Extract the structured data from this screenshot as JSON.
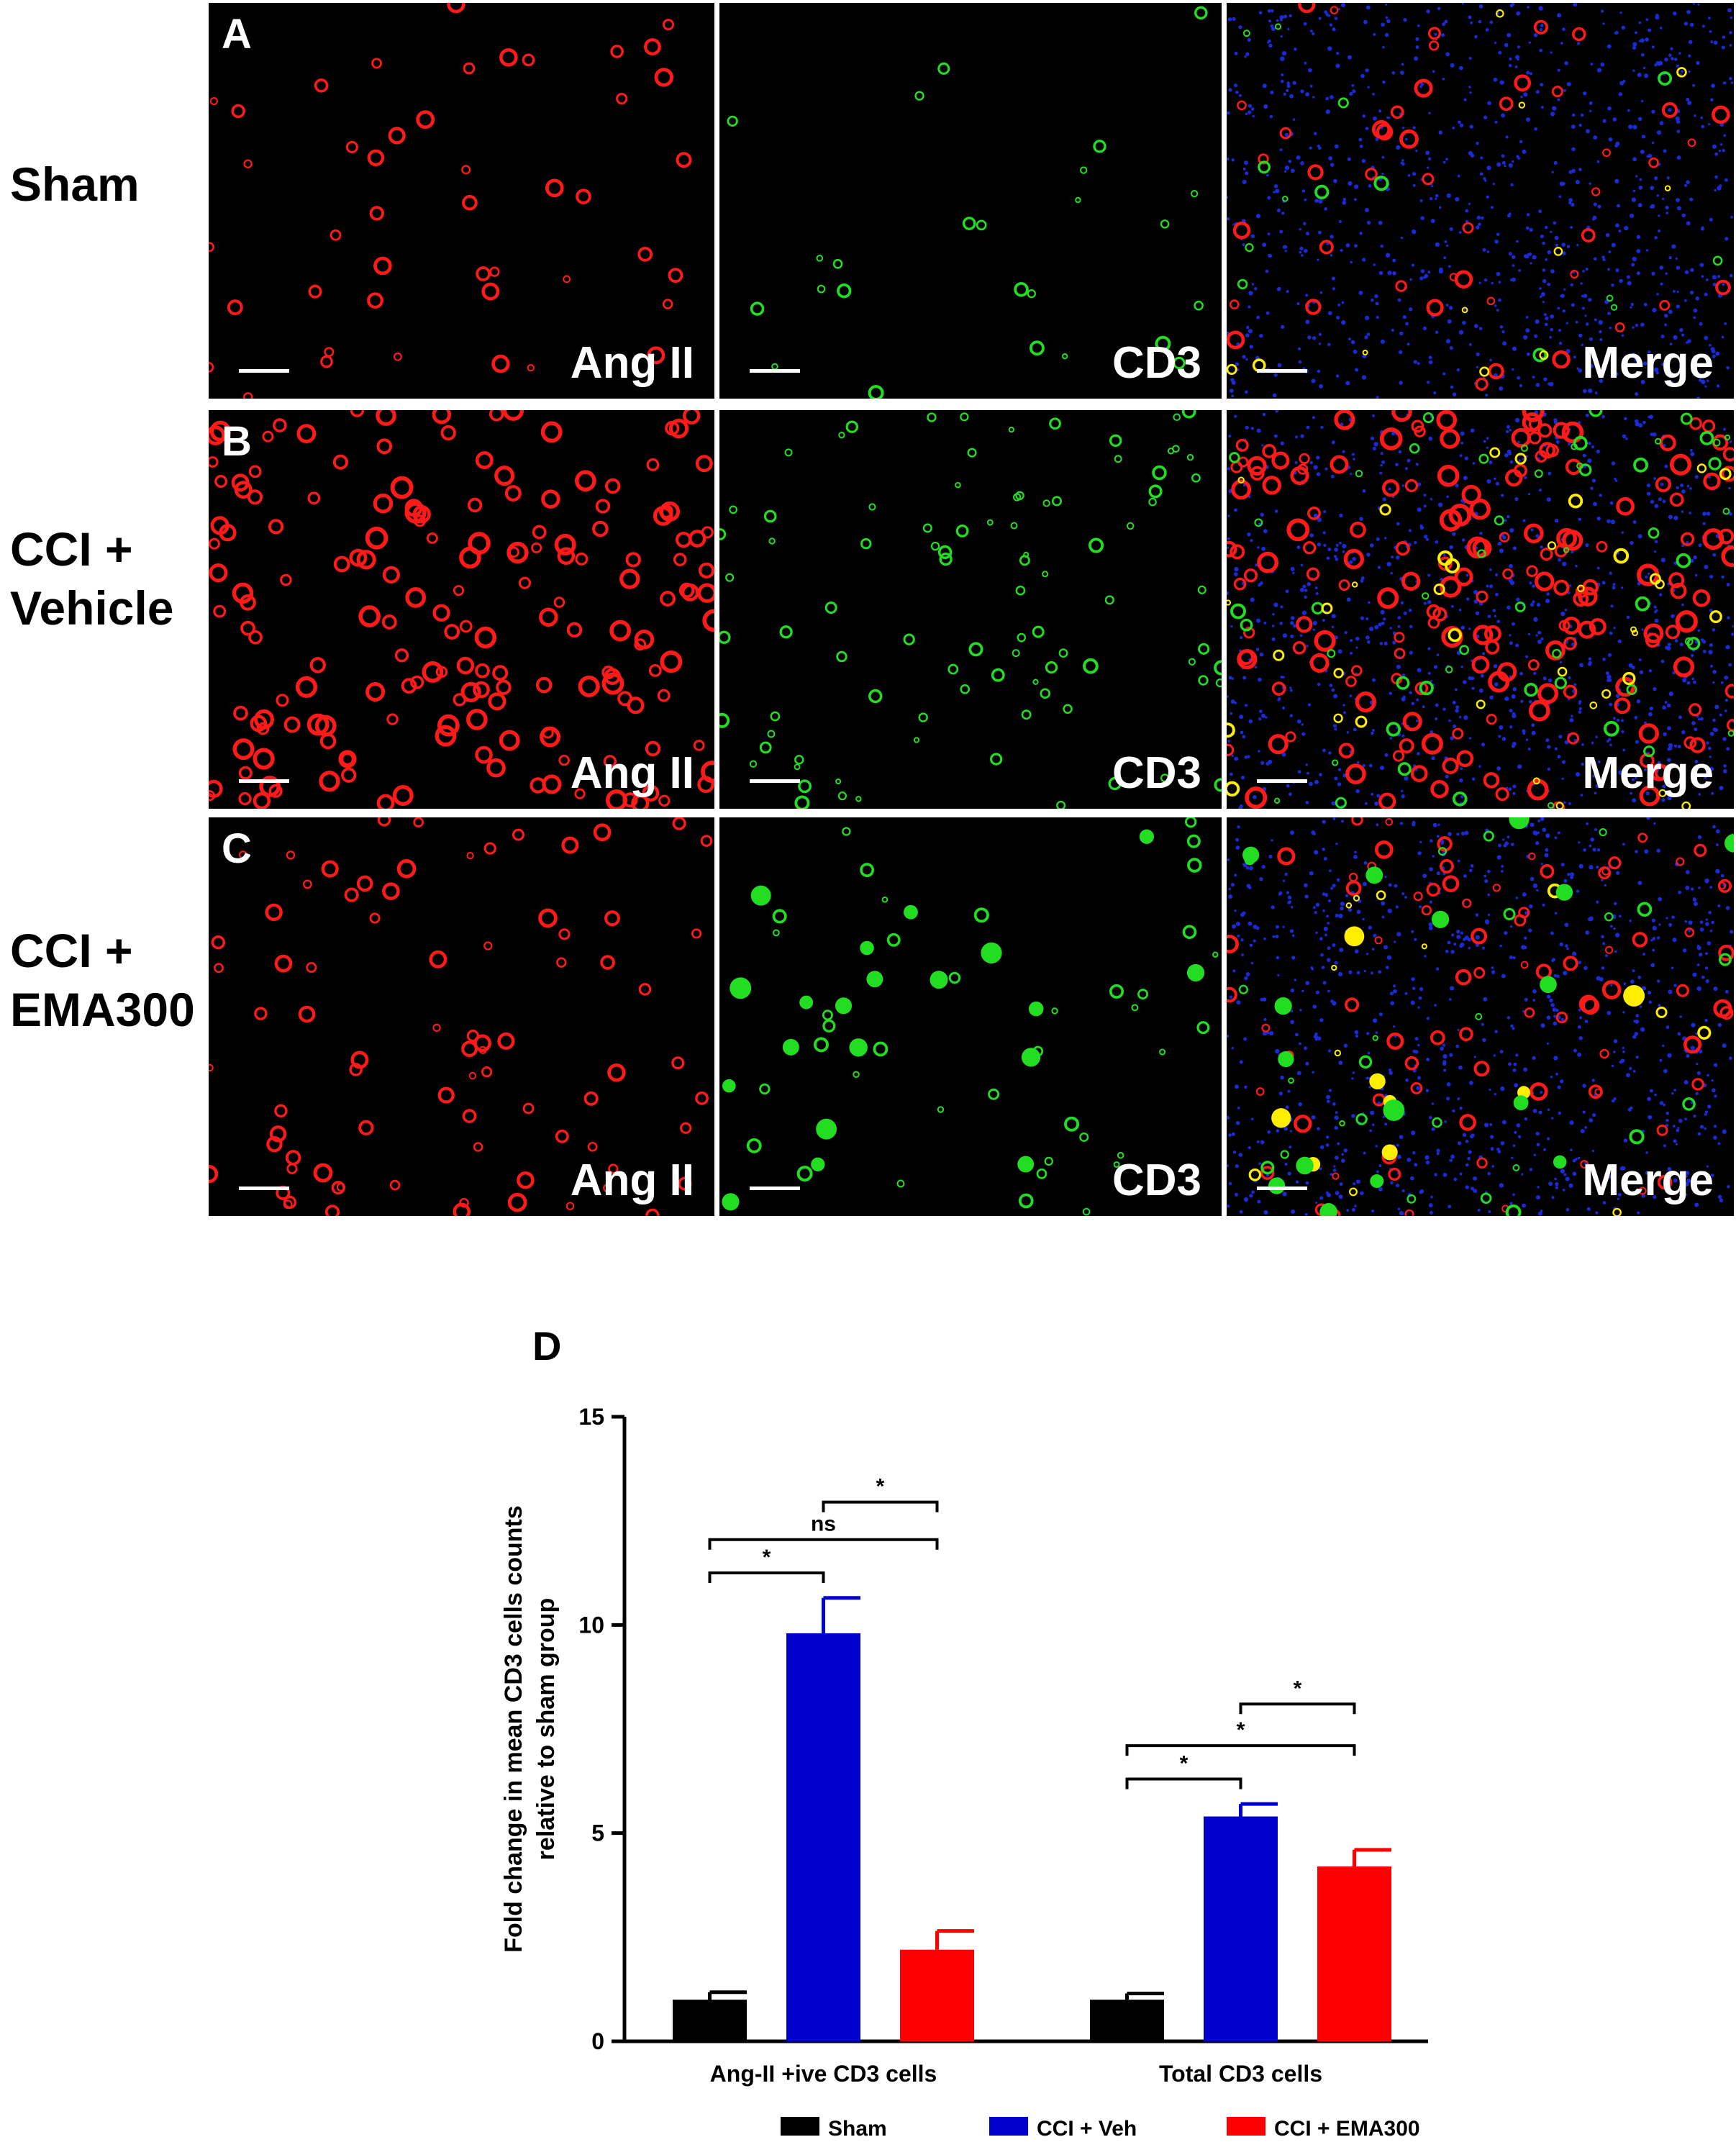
{
  "rows": [
    {
      "label": "Sham",
      "letter": "A",
      "intensity": "low"
    },
    {
      "label": "CCI +\nVehicle",
      "letter": "B",
      "intensity": "high"
    },
    {
      "label": "CCI +\nEMA300",
      "letter": "C",
      "intensity": "mixed"
    }
  ],
  "channels": [
    "Ang II",
    "CD3",
    "Merge"
  ],
  "colors": {
    "ang2": "#ff1a1a",
    "cd3": "#22dd22",
    "dapi": "#1a2ad6",
    "coloc": "#ffee00"
  },
  "chart_data": {
    "type": "bar",
    "panel_letter": "D",
    "categories": [
      "Ang-II +ive CD3 cells",
      "Total CD3 cells"
    ],
    "series": [
      {
        "name": "Sham",
        "color": "#000000",
        "values": [
          1.0,
          1.0
        ],
        "errors": [
          0.18,
          0.15
        ]
      },
      {
        "name": "CCI + Veh",
        "color": "#0000cc",
        "values": [
          9.8,
          5.4
        ],
        "errors": [
          0.85,
          0.3
        ]
      },
      {
        "name": "CCI + EMA300",
        "color": "#ff0000",
        "values": [
          2.2,
          4.2
        ],
        "errors": [
          0.45,
          0.4
        ]
      }
    ],
    "ylabel_lines": [
      "Fold change in mean CD3 cells counts",
      "relative to sham group"
    ],
    "ylim": [
      0,
      15
    ],
    "yticks": [
      0,
      5,
      10,
      15
    ],
    "legend_position": "bottom",
    "significance": [
      {
        "category": 0,
        "from": 0,
        "to": 1,
        "label": "*",
        "y": 11.25
      },
      {
        "category": 0,
        "from": 0,
        "to": 2,
        "label": "ns",
        "y": 12.05
      },
      {
        "category": 0,
        "from": 1,
        "to": 2,
        "label": "*",
        "y": 12.95
      },
      {
        "category": 1,
        "from": 0,
        "to": 1,
        "label": "*",
        "y": 6.3
      },
      {
        "category": 1,
        "from": 0,
        "to": 2,
        "label": "*",
        "y": 7.1
      },
      {
        "category": 1,
        "from": 1,
        "to": 2,
        "label": "*",
        "y": 8.1
      }
    ]
  }
}
